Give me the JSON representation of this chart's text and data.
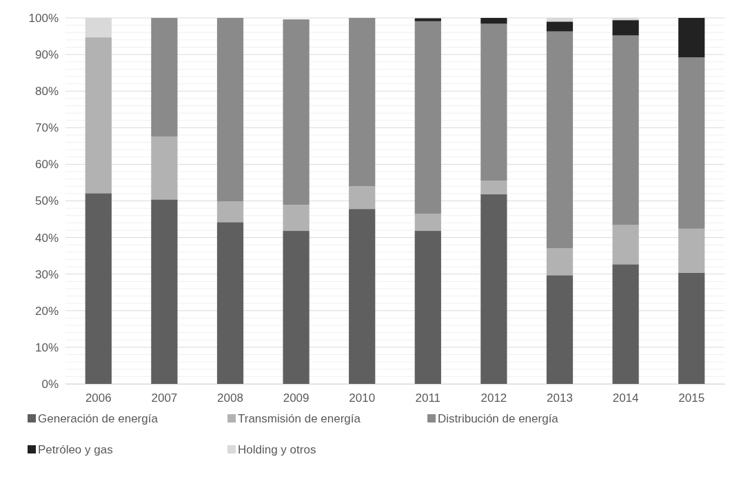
{
  "chart_data": {
    "type": "bar",
    "stacked": true,
    "categories": [
      "2006",
      "2007",
      "2008",
      "2009",
      "2010",
      "2011",
      "2012",
      "2013",
      "2014",
      "2015"
    ],
    "series": [
      {
        "name": "Generación de energía",
        "color": "#5f5f5f",
        "values": [
          52.1,
          50.4,
          44.2,
          41.8,
          47.8,
          41.8,
          51.8,
          29.7,
          32.7,
          30.4
        ]
      },
      {
        "name": "Transmisión de energía",
        "color": "#b2b2b2",
        "values": [
          42.6,
          17.2,
          5.7,
          7.1,
          6.2,
          4.7,
          3.7,
          7.4,
          10.7,
          12.0
        ]
      },
      {
        "name": "Distribución de energía",
        "color": "#8a8a8a",
        "values": [
          0,
          32.4,
          50.1,
          50.7,
          46.0,
          52.6,
          42.9,
          59.2,
          51.8,
          46.8
        ]
      },
      {
        "name": "Petróleo y gas",
        "color": "#222222",
        "values": [
          0,
          0,
          0,
          0,
          0,
          0.8,
          1.6,
          2.7,
          4.2,
          10.8
        ]
      },
      {
        "name": "Holding y otros",
        "color": "#d9d9d9",
        "values": [
          5.3,
          0,
          0,
          0,
          0,
          0,
          0,
          1.0,
          0.6,
          0
        ]
      }
    ],
    "ylim": [
      0,
      100
    ],
    "yticks": [
      {
        "value": 0,
        "label": "0%"
      },
      {
        "value": 2,
        "label": null
      },
      {
        "value": 4,
        "label": null
      },
      {
        "value": 6,
        "label": null
      },
      {
        "value": 8,
        "label": null
      },
      {
        "value": 10,
        "label": "10%"
      },
      {
        "value": 12,
        "label": null
      },
      {
        "value": 14,
        "label": null
      },
      {
        "value": 16,
        "label": null
      },
      {
        "value": 18,
        "label": null
      },
      {
        "value": 20,
        "label": "20%"
      },
      {
        "value": 22,
        "label": null
      },
      {
        "value": 24,
        "label": null
      },
      {
        "value": 26,
        "label": null
      },
      {
        "value": 28,
        "label": null
      },
      {
        "value": 30,
        "label": "30%"
      },
      {
        "value": 32,
        "label": null
      },
      {
        "value": 34,
        "label": null
      },
      {
        "value": 36,
        "label": null
      },
      {
        "value": 38,
        "label": null
      },
      {
        "value": 40,
        "label": "40%"
      },
      {
        "value": 42,
        "label": null
      },
      {
        "value": 44,
        "label": null
      },
      {
        "value": 46,
        "label": null
      },
      {
        "value": 48,
        "label": null
      },
      {
        "value": 50,
        "label": "50%"
      },
      {
        "value": 52,
        "label": null
      },
      {
        "value": 54,
        "label": null
      },
      {
        "value": 56,
        "label": null
      },
      {
        "value": 58,
        "label": null
      },
      {
        "value": 60,
        "label": "60%"
      },
      {
        "value": 62,
        "label": null
      },
      {
        "value": 64,
        "label": null
      },
      {
        "value": 66,
        "label": null
      },
      {
        "value": 68,
        "label": null
      },
      {
        "value": 70,
        "label": "70%"
      },
      {
        "value": 72,
        "label": null
      },
      {
        "value": 74,
        "label": null
      },
      {
        "value": 76,
        "label": null
      },
      {
        "value": 78,
        "label": null
      },
      {
        "value": 80,
        "label": "80%"
      },
      {
        "value": 82,
        "label": null
      },
      {
        "value": 84,
        "label": null
      },
      {
        "value": 86,
        "label": null
      },
      {
        "value": 88,
        "label": null
      },
      {
        "value": 90,
        "label": "90%"
      },
      {
        "value": 92,
        "label": null
      },
      {
        "value": 94,
        "label": null
      },
      {
        "value": 96,
        "label": null
      },
      {
        "value": 98,
        "label": null
      },
      {
        "value": 100,
        "label": "100%"
      }
    ],
    "grid": true,
    "legend": "bottom"
  }
}
